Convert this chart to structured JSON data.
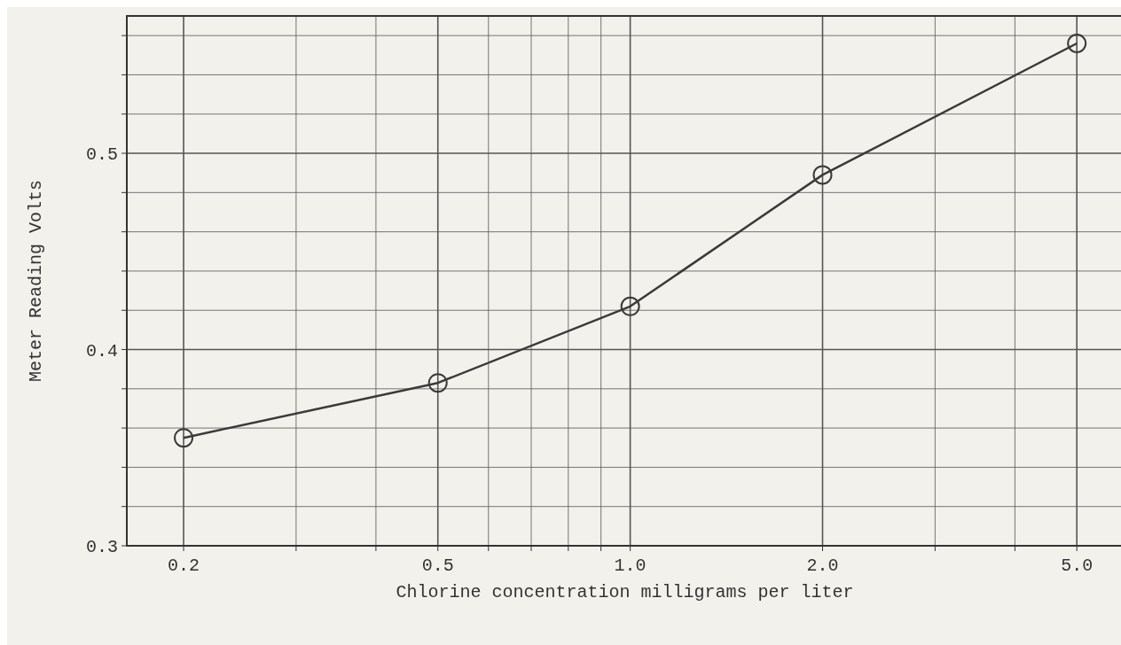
{
  "chart_data": {
    "type": "line",
    "xlabel": "Chlorine concentration milligrams per liter",
    "ylabel": "Meter Reading Volts",
    "log": "x",
    "grid": true,
    "marker": "circle",
    "line_style": "solid",
    "x": [
      0.2,
      0.5,
      1.0,
      2.0,
      5.0
    ],
    "series": [
      {
        "color": "#3a3a3a",
        "values": [
          0.355,
          0.383,
          0.422,
          0.489,
          0.556
        ]
      }
    ],
    "xlim": [
      0.163,
      5.9
    ],
    "ylim": [
      0.3,
      0.57
    ],
    "xticks": [
      {
        "value": 0.2,
        "label": "0.2"
      },
      {
        "value": 0.3,
        "label": null
      },
      {
        "value": 0.4,
        "label": null
      },
      {
        "value": 0.5,
        "label": "0.5"
      },
      {
        "value": 0.6,
        "label": null
      },
      {
        "value": 0.7,
        "label": null
      },
      {
        "value": 0.8,
        "label": null
      },
      {
        "value": 0.9,
        "label": null
      },
      {
        "value": 1,
        "label": "1.0"
      },
      {
        "value": 2,
        "label": "2.0"
      },
      {
        "value": 3,
        "label": null
      },
      {
        "value": 4,
        "label": null
      },
      {
        "value": 5,
        "label": "5.0"
      }
    ],
    "yticks": [
      0.3,
      {
        "value": 0.32,
        "label": null
      },
      {
        "value": 0.34,
        "label": null
      },
      {
        "value": 0.36,
        "label": null
      },
      {
        "value": 0.38,
        "label": null
      },
      0.4,
      {
        "value": 0.42,
        "label": null
      },
      {
        "value": 0.44,
        "label": null
      },
      {
        "value": 0.46,
        "label": null
      },
      {
        "value": 0.48,
        "label": null
      },
      0.5,
      {
        "value": 0.52,
        "label": null
      },
      {
        "value": 0.54,
        "label": null
      },
      {
        "value": 0.56,
        "label": null
      }
    ]
  }
}
